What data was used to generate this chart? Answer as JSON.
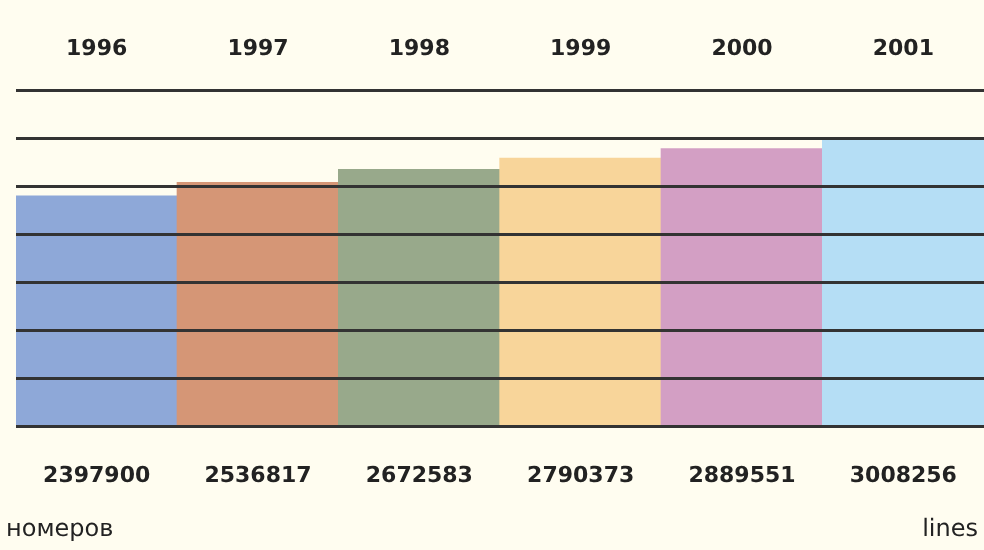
{
  "chart_data": {
    "type": "bar",
    "categories": [
      "1996",
      "1997",
      "1998",
      "1999",
      "2000",
      "2001"
    ],
    "values": [
      2397900,
      2536817,
      2672583,
      2790373,
      2889551,
      3008256
    ],
    "colors": [
      "#8ea8d8",
      "#d59676",
      "#98a98b",
      "#f8d59a",
      "#d39fc4",
      "#b5def5"
    ],
    "ylim": [
      0,
      3500000
    ],
    "yticks": [
      {
        "value": 0,
        "label": null
      },
      {
        "value": 500000,
        "label": null
      },
      {
        "value": 1000000,
        "label": null
      },
      {
        "value": 1500000,
        "label": null
      },
      {
        "value": 2000000,
        "label": null
      },
      {
        "value": 2500000,
        "label": null
      },
      {
        "value": 3000000,
        "label": null
      },
      {
        "value": 3500000,
        "label": null
      }
    ],
    "grid": "y",
    "tick_labels": "x",
    "data_labels": true,
    "annotations": [
      "номеров",
      "lines"
    ]
  }
}
